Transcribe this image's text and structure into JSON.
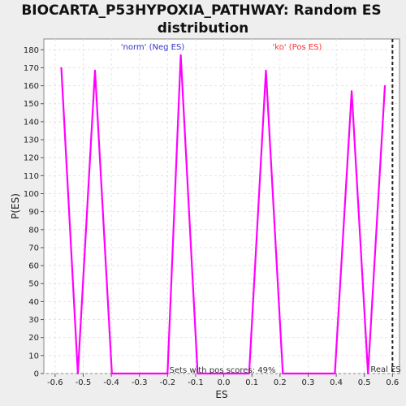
{
  "chart_data": {
    "type": "line",
    "title_line1": "BIOCARTA_P53HYPOXIA_PATHWAY: Random ES",
    "title_line2": "distribution",
    "xlabel": "ES",
    "ylabel": "P(ES)",
    "xlim": [
      -0.64,
      0.625
    ],
    "ylim": [
      0,
      186
    ],
    "xticks": [
      -0.6,
      -0.5,
      -0.4,
      -0.3,
      -0.2,
      -0.1,
      0.0,
      0.1,
      0.2,
      0.3,
      0.4,
      0.5,
      0.6
    ],
    "xtick_labels": [
      "-0.6",
      "-0.5",
      "-0.4",
      "-0.3",
      "-0.2",
      "-0.1",
      "0.0",
      "0.1",
      "0.2",
      "0.3",
      "0.4",
      "0.5",
      "0.6"
    ],
    "yticks": [
      0,
      10,
      20,
      30,
      40,
      50,
      60,
      70,
      80,
      90,
      100,
      110,
      120,
      130,
      140,
      150,
      160,
      170,
      180
    ],
    "ytick_labels": [
      "0",
      "10",
      "20",
      "30",
      "40",
      "50",
      "60",
      "70",
      "80",
      "90",
      "100",
      "110",
      "120",
      "130",
      "140",
      "150",
      "160",
      "170",
      "180"
    ],
    "grid": true,
    "legend_neg": "'norm' (Neg ES)",
    "legend_pos": "'ko' (Pos ES)",
    "neg_color": "#3333cc",
    "pos_color": "#ff3333",
    "series": [
      {
        "color": "#ff00ff",
        "x": [
          -0.578,
          -0.519,
          -0.458,
          -0.398,
          -0.3,
          -0.2,
          -0.153,
          -0.093,
          0.0,
          0.09,
          0.15,
          0.21,
          0.3,
          0.395,
          0.455,
          0.513,
          0.573
        ],
        "y": [
          170,
          0,
          168.5,
          0,
          0,
          0,
          177,
          0,
          0,
          0,
          168.5,
          0,
          0,
          0,
          157,
          0,
          160
        ]
      }
    ],
    "real_es_x": 0.6,
    "real_es_label": "Real ES",
    "annotation": "Sets with pos scores: 49%"
  }
}
